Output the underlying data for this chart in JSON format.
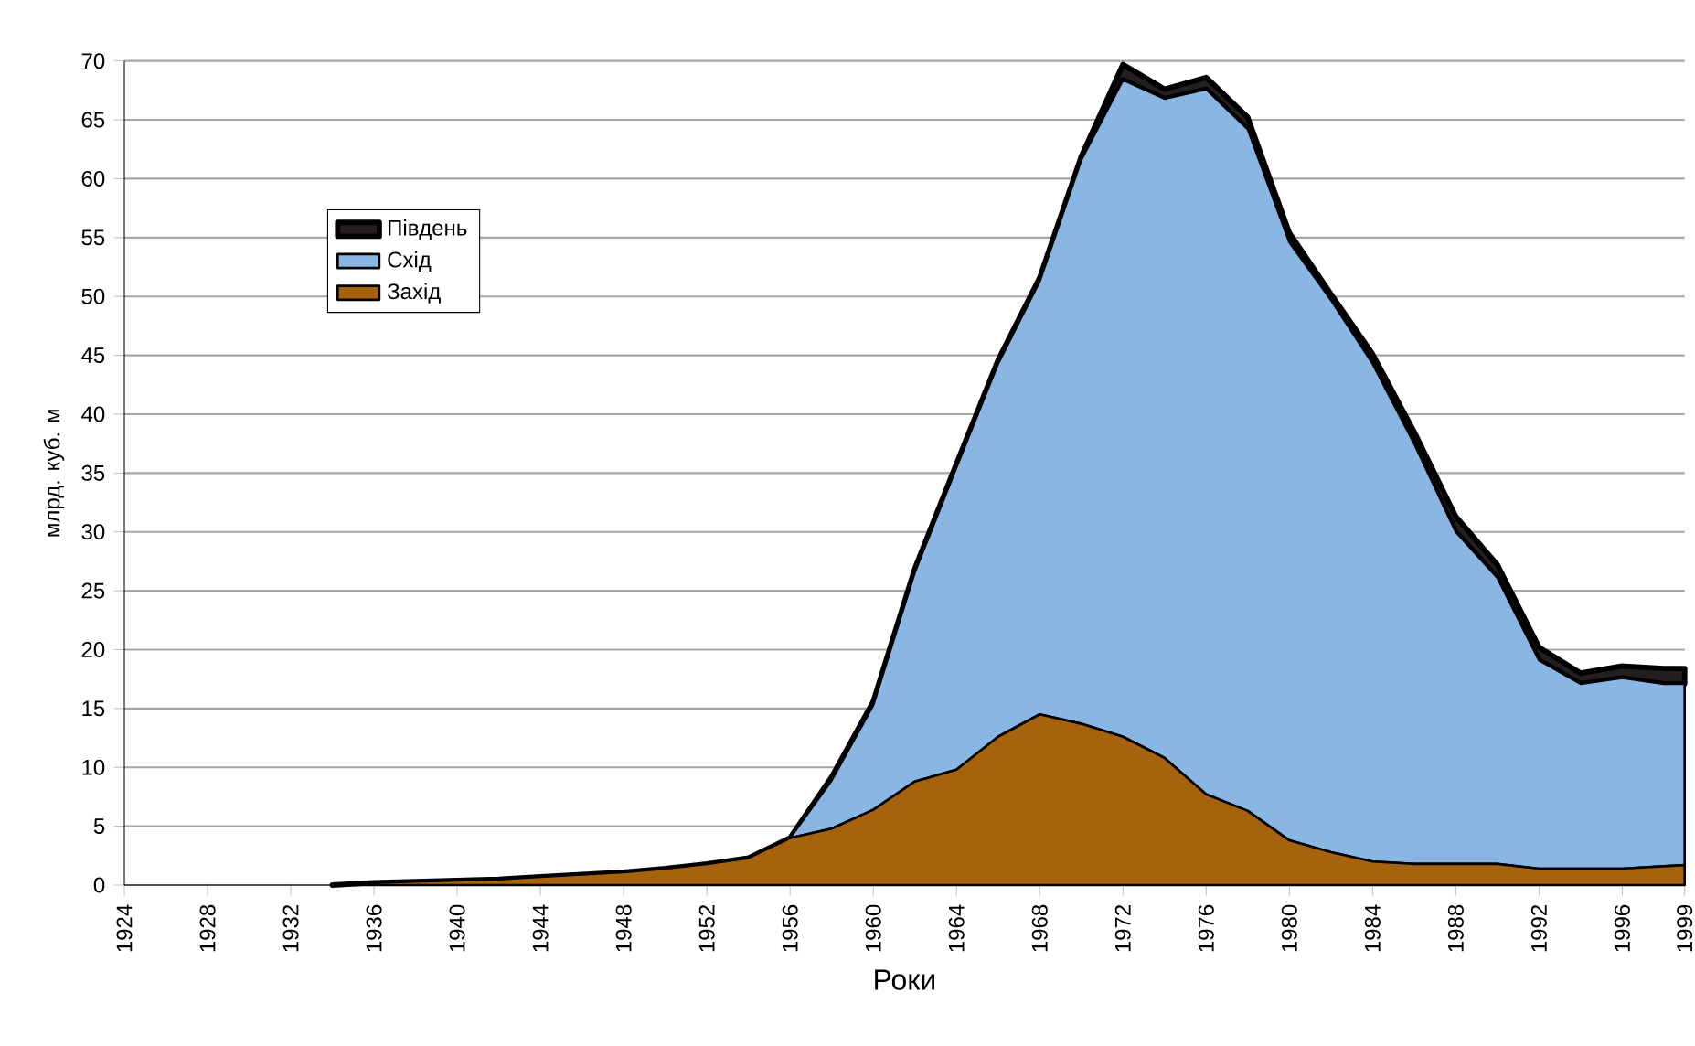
{
  "chart_data": {
    "type": "area",
    "stacked": true,
    "xlabel": "Роки",
    "ylabel": "млрд. куб. м",
    "x": [
      1934,
      1936,
      1938,
      1940,
      1942,
      1944,
      1946,
      1948,
      1950,
      1952,
      1954,
      1956,
      1958,
      1960,
      1962,
      1964,
      1966,
      1968,
      1970,
      1972,
      1974,
      1976,
      1978,
      1980,
      1982,
      1984,
      1986,
      1988,
      1990,
      1992,
      1994,
      1996,
      1998,
      1999
    ],
    "series": [
      {
        "name": "Захід",
        "color": "#a6620c",
        "values": [
          0,
          0.2,
          0.3,
          0.4,
          0.5,
          0.7,
          0.9,
          1.1,
          1.4,
          1.8,
          2.3,
          4.0,
          4.8,
          6.4,
          8.8,
          9.8,
          12.6,
          14.5,
          13.7,
          12.6,
          10.8,
          7.7,
          6.3,
          3.8,
          2.8,
          2.0,
          1.8,
          1.8,
          1.8,
          1.4,
          1.4,
          1.4,
          1.6,
          1.7
        ]
      },
      {
        "name": "Схід",
        "color": "#89b6e3",
        "values": [
          0,
          0,
          0,
          0,
          0,
          0,
          0,
          0,
          0,
          0,
          0,
          0,
          4.1,
          8.9,
          17.8,
          25.7,
          31.7,
          36.8,
          47.9,
          55.8,
          56.0,
          59.9,
          57.9,
          50.8,
          46.9,
          42.3,
          35.7,
          28.2,
          24.3,
          17.7,
          15.7,
          16.2,
          15.5,
          15.4
        ]
      },
      {
        "name": "Південь",
        "color": "#231f20",
        "values": [
          0,
          0,
          0,
          0,
          0,
          0,
          0,
          0,
          0,
          0,
          0,
          0,
          0.3,
          0.3,
          0.3,
          0.3,
          0.3,
          0.3,
          0.3,
          1.3,
          0.8,
          1.0,
          1.0,
          0.8,
          0.5,
          0.8,
          1.0,
          1.3,
          1.1,
          1.1,
          0.9,
          1.0,
          1.3,
          1.3
        ]
      }
    ],
    "xlim": [
      1924,
      1999
    ],
    "xticks": [
      1924,
      1928,
      1932,
      1936,
      1940,
      1944,
      1948,
      1952,
      1956,
      1960,
      1964,
      1968,
      1972,
      1976,
      1980,
      1984,
      1988,
      1992,
      1996,
      1999
    ],
    "ylim": [
      0,
      70
    ],
    "yticks": [
      0,
      5,
      10,
      15,
      20,
      25,
      30,
      35,
      40,
      45,
      50,
      55,
      60,
      65,
      70
    ],
    "grid": "y",
    "legend": "top left"
  }
}
